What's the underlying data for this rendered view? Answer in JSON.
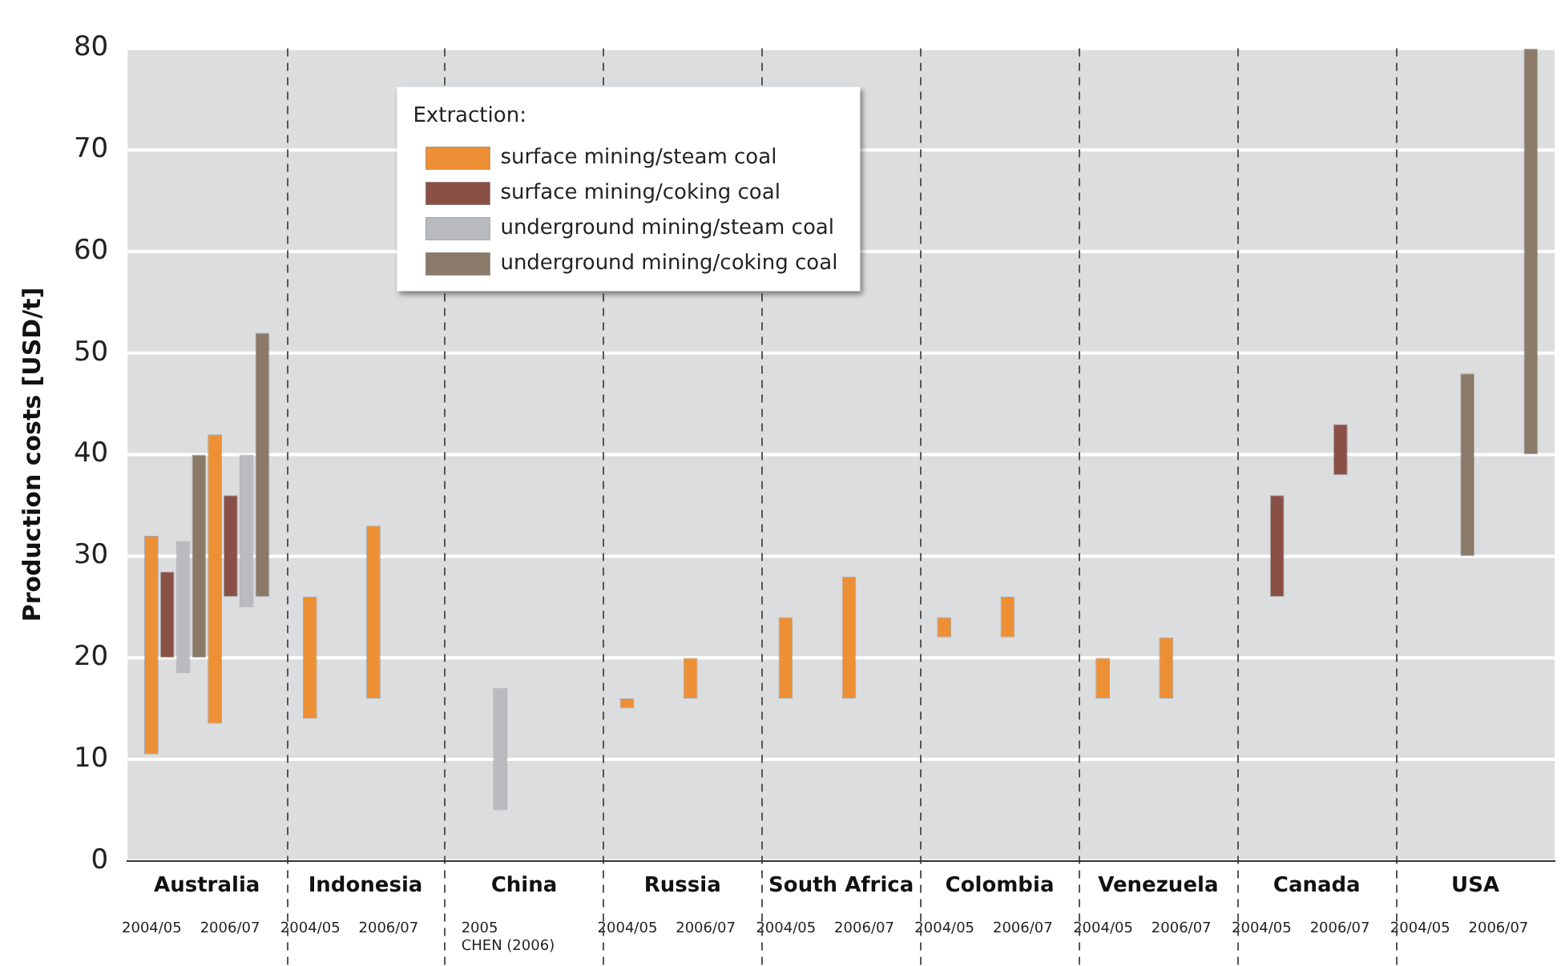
{
  "chart_data": {
    "type": "bar",
    "ylabel": "Production costs [USD/t]",
    "legend_title": "Extraction:",
    "categories": [
      "Australia",
      "Indonesia",
      "China",
      "Russia",
      "South Africa",
      "Colombia",
      "Venezuela",
      "Canada",
      "USA"
    ],
    "series": [
      {
        "name": "surface mining/steam coal",
        "color": "#ed9035",
        "base": [
          10.5,
          14,
          null,
          15,
          16,
          22,
          16,
          null,
          null
        ],
        "values": [
          21.5,
          12,
          null,
          1,
          8,
          2,
          4,
          null,
          null
        ]
      },
      {
        "name": "surface mining/coking coal",
        "color": "#8a5046",
        "base": [
          20,
          null,
          null,
          null,
          null,
          null,
          null,
          26,
          null
        ],
        "values": [
          8.5,
          null,
          null,
          null,
          null,
          null,
          null,
          10,
          null
        ]
      },
      {
        "name": "underground mining/steam coal",
        "color": "#b9bbbe",
        "base": [
          18.5,
          null,
          5,
          null,
          null,
          null,
          null,
          null,
          null
        ],
        "values": [
          13,
          null,
          12,
          null,
          null,
          null,
          null,
          null,
          null
        ]
      },
      {
        "name": "underground mining/coking coal",
        "color": "#8b7a69",
        "base": [
          20,
          null,
          null,
          null,
          null,
          null,
          null,
          null,
          30
        ],
        "values": [
          20,
          null,
          null,
          null,
          null,
          null,
          null,
          null,
          18
        ]
      },
      {
        "color": "#ed9035",
        "base": [
          13.5,
          16,
          null,
          16,
          16,
          22,
          16,
          null,
          null
        ],
        "values": [
          28.5,
          17,
          null,
          4,
          12,
          4,
          6,
          null,
          null
        ]
      },
      {
        "color": "#8a5046",
        "base": [
          26,
          null,
          null,
          null,
          null,
          null,
          null,
          38,
          null
        ],
        "values": [
          10,
          null,
          null,
          null,
          null,
          null,
          null,
          5,
          null
        ]
      },
      {
        "color": "#b9bbbe",
        "base": [
          25,
          null,
          null,
          null,
          null,
          null,
          null,
          null,
          null
        ],
        "values": [
          15,
          null,
          null,
          null,
          null,
          null,
          null,
          null,
          null
        ]
      },
      {
        "color": "#8b7a69",
        "base": [
          26,
          null,
          null,
          null,
          null,
          null,
          null,
          null,
          40
        ],
        "values": [
          26,
          null,
          null,
          null,
          null,
          null,
          null,
          null,
          40
        ]
      }
    ],
    "ylim": [
      0,
      80
    ],
    "yticks": [
      0,
      10,
      20,
      30,
      40,
      50,
      60,
      70,
      80
    ],
    "grid": true,
    "legend": "top",
    "annotations": [
      "2004/05    2006/07",
      "2004/05    2006/07",
      "2005\nCHEN (2006)",
      "2004/05    2006/07",
      "2004/05    2006/07",
      "2004/05    2006/07",
      "2004/05    2006/07",
      "2004/05    2006/07",
      "2004/05    2006/07"
    ]
  }
}
